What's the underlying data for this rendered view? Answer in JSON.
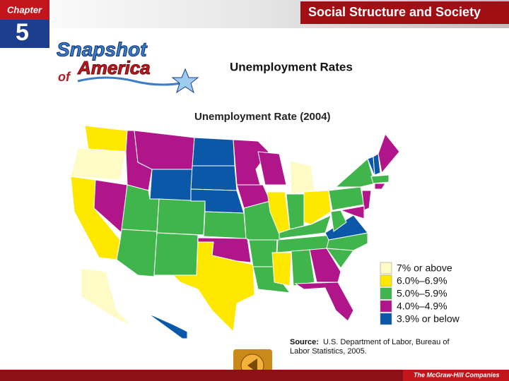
{
  "header": {
    "chapter_label": "Chapter",
    "chapter_number": "5",
    "banner": "Social Structure and Society"
  },
  "logo": {
    "line1": "Snapshot",
    "line2a": "of",
    "line2b": "America"
  },
  "slide_title": "Unemployment Rates",
  "map": {
    "title": "Unemployment Rate (2004)",
    "legend": [
      {
        "label": "7% or above",
        "color": "#fffbc6"
      },
      {
        "label": "6.0%–6.9%",
        "color": "#ffe800"
      },
      {
        "label": "5.0%–5.9%",
        "color": "#3fb54b"
      },
      {
        "label": "4.0%–4.9%",
        "color": "#b0168a"
      },
      {
        "label": "3.9% or below",
        "color": "#0b58a8"
      }
    ]
  },
  "source": {
    "lead": "Source:",
    "text": "U.S. Department of Labor, Bureau of Labor Statistics, 2005."
  },
  "footer": {
    "publisher": "The McGraw-Hill Companies"
  }
}
